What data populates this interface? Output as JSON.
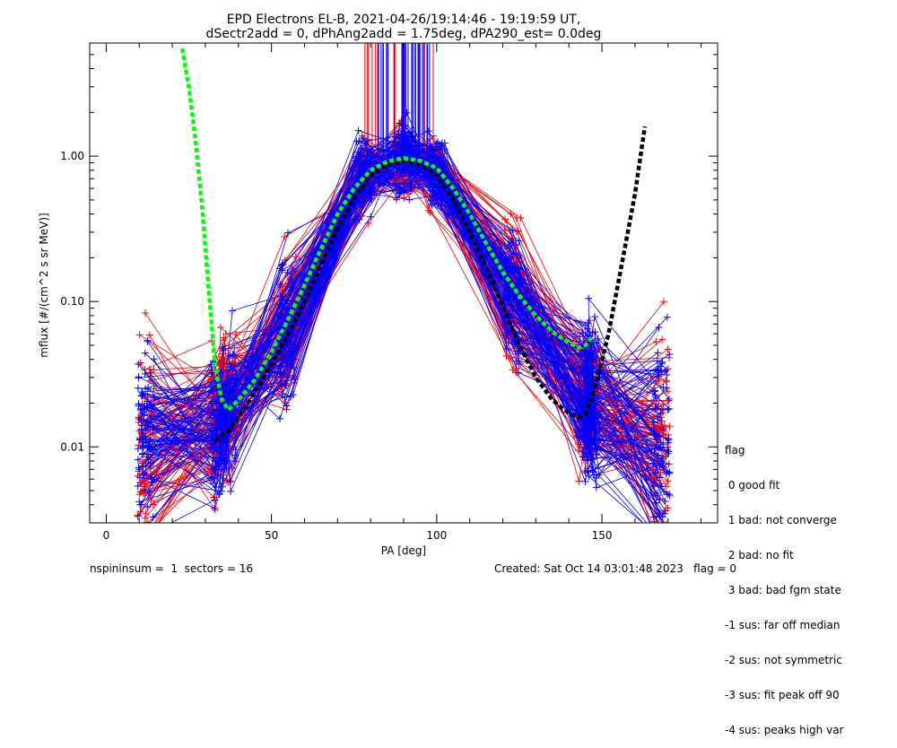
{
  "chart_data": {
    "type": "line",
    "title": "EPD Electrons EL-B, 2021-04-26/19:14:46 - 19:19:59 UT,",
    "subtitle": "dSectr2add = 0, dPhAng2add = 1.75deg, dPA290_est=    0.0deg",
    "xlabel": "PA [deg]",
    "ylabel": "mflux [#/(cm^2 s sr MeV)]",
    "xlim": [
      -5,
      185
    ],
    "ylim": [
      0.003,
      6.0
    ],
    "yscale": "log",
    "x_ticks": [
      0,
      50,
      100,
      150
    ],
    "x_tick_labels": [
      "0",
      "50",
      "100",
      "150"
    ],
    "y_ticks": [
      0.01,
      0.1,
      1.0
    ],
    "y_tick_labels": [
      "0.01",
      "0.10",
      "1.00"
    ],
    "grid": false,
    "profile_pa": [
      12,
      34,
      37,
      55,
      78,
      90,
      100,
      123,
      145,
      147,
      168
    ],
    "profile_median": [
      0.011,
      0.015,
      0.018,
      0.06,
      0.75,
      0.92,
      0.8,
      0.11,
      0.022,
      0.02,
      0.011
    ],
    "fit_green": {
      "x": [
        23,
        25,
        27,
        29,
        31,
        33,
        35,
        37,
        40,
        45,
        50,
        55,
        60,
        65,
        70,
        75,
        80,
        85,
        90,
        95,
        100,
        105,
        110,
        115,
        120,
        125,
        130,
        135,
        140,
        143,
        145,
        147
      ],
      "y": [
        5.5,
        3.0,
        1.3,
        0.45,
        0.12,
        0.035,
        0.021,
        0.018,
        0.021,
        0.029,
        0.045,
        0.075,
        0.13,
        0.23,
        0.4,
        0.6,
        0.8,
        0.92,
        0.97,
        0.93,
        0.83,
        0.6,
        0.4,
        0.25,
        0.16,
        0.11,
        0.08,
        0.062,
        0.052,
        0.048,
        0.05,
        0.057
      ]
    },
    "fit_black": {
      "x": [
        33,
        35,
        37,
        40,
        45,
        50,
        55,
        60,
        65,
        70,
        75,
        80,
        85,
        90,
        95,
        100,
        105,
        110,
        115,
        120,
        125,
        130,
        135,
        140,
        143,
        145,
        148,
        152,
        156,
        160,
        163
      ],
      "y": [
        0.011,
        0.012,
        0.013,
        0.016,
        0.024,
        0.037,
        0.06,
        0.1,
        0.18,
        0.32,
        0.52,
        0.74,
        0.88,
        0.93,
        0.88,
        0.74,
        0.5,
        0.3,
        0.17,
        0.093,
        0.05,
        0.03,
        0.021,
        0.017,
        0.016,
        0.017,
        0.026,
        0.06,
        0.18,
        0.55,
        1.6
      ]
    },
    "series": [
      {
        "name": "",
        "color": "#ff0000"
      },
      {
        "name": "",
        "color": "#0000ff"
      }
    ]
  },
  "legend": {
    "title": "flag",
    "items": [
      " 0 good fit",
      " 1 bad: not converge",
      " 2 bad: no fit",
      " 3 bad: bad fgm state",
      "-1 sus: far off median",
      "-2 sus: not symmetric",
      "-3 sus: fit peak off 90",
      "-4 sus: peaks high var"
    ]
  },
  "footer": {
    "left": "nspininsum =  1  sectors = 16",
    "right": "Created: Sat Oct 14 03:01:48 2023   flag = 0"
  }
}
